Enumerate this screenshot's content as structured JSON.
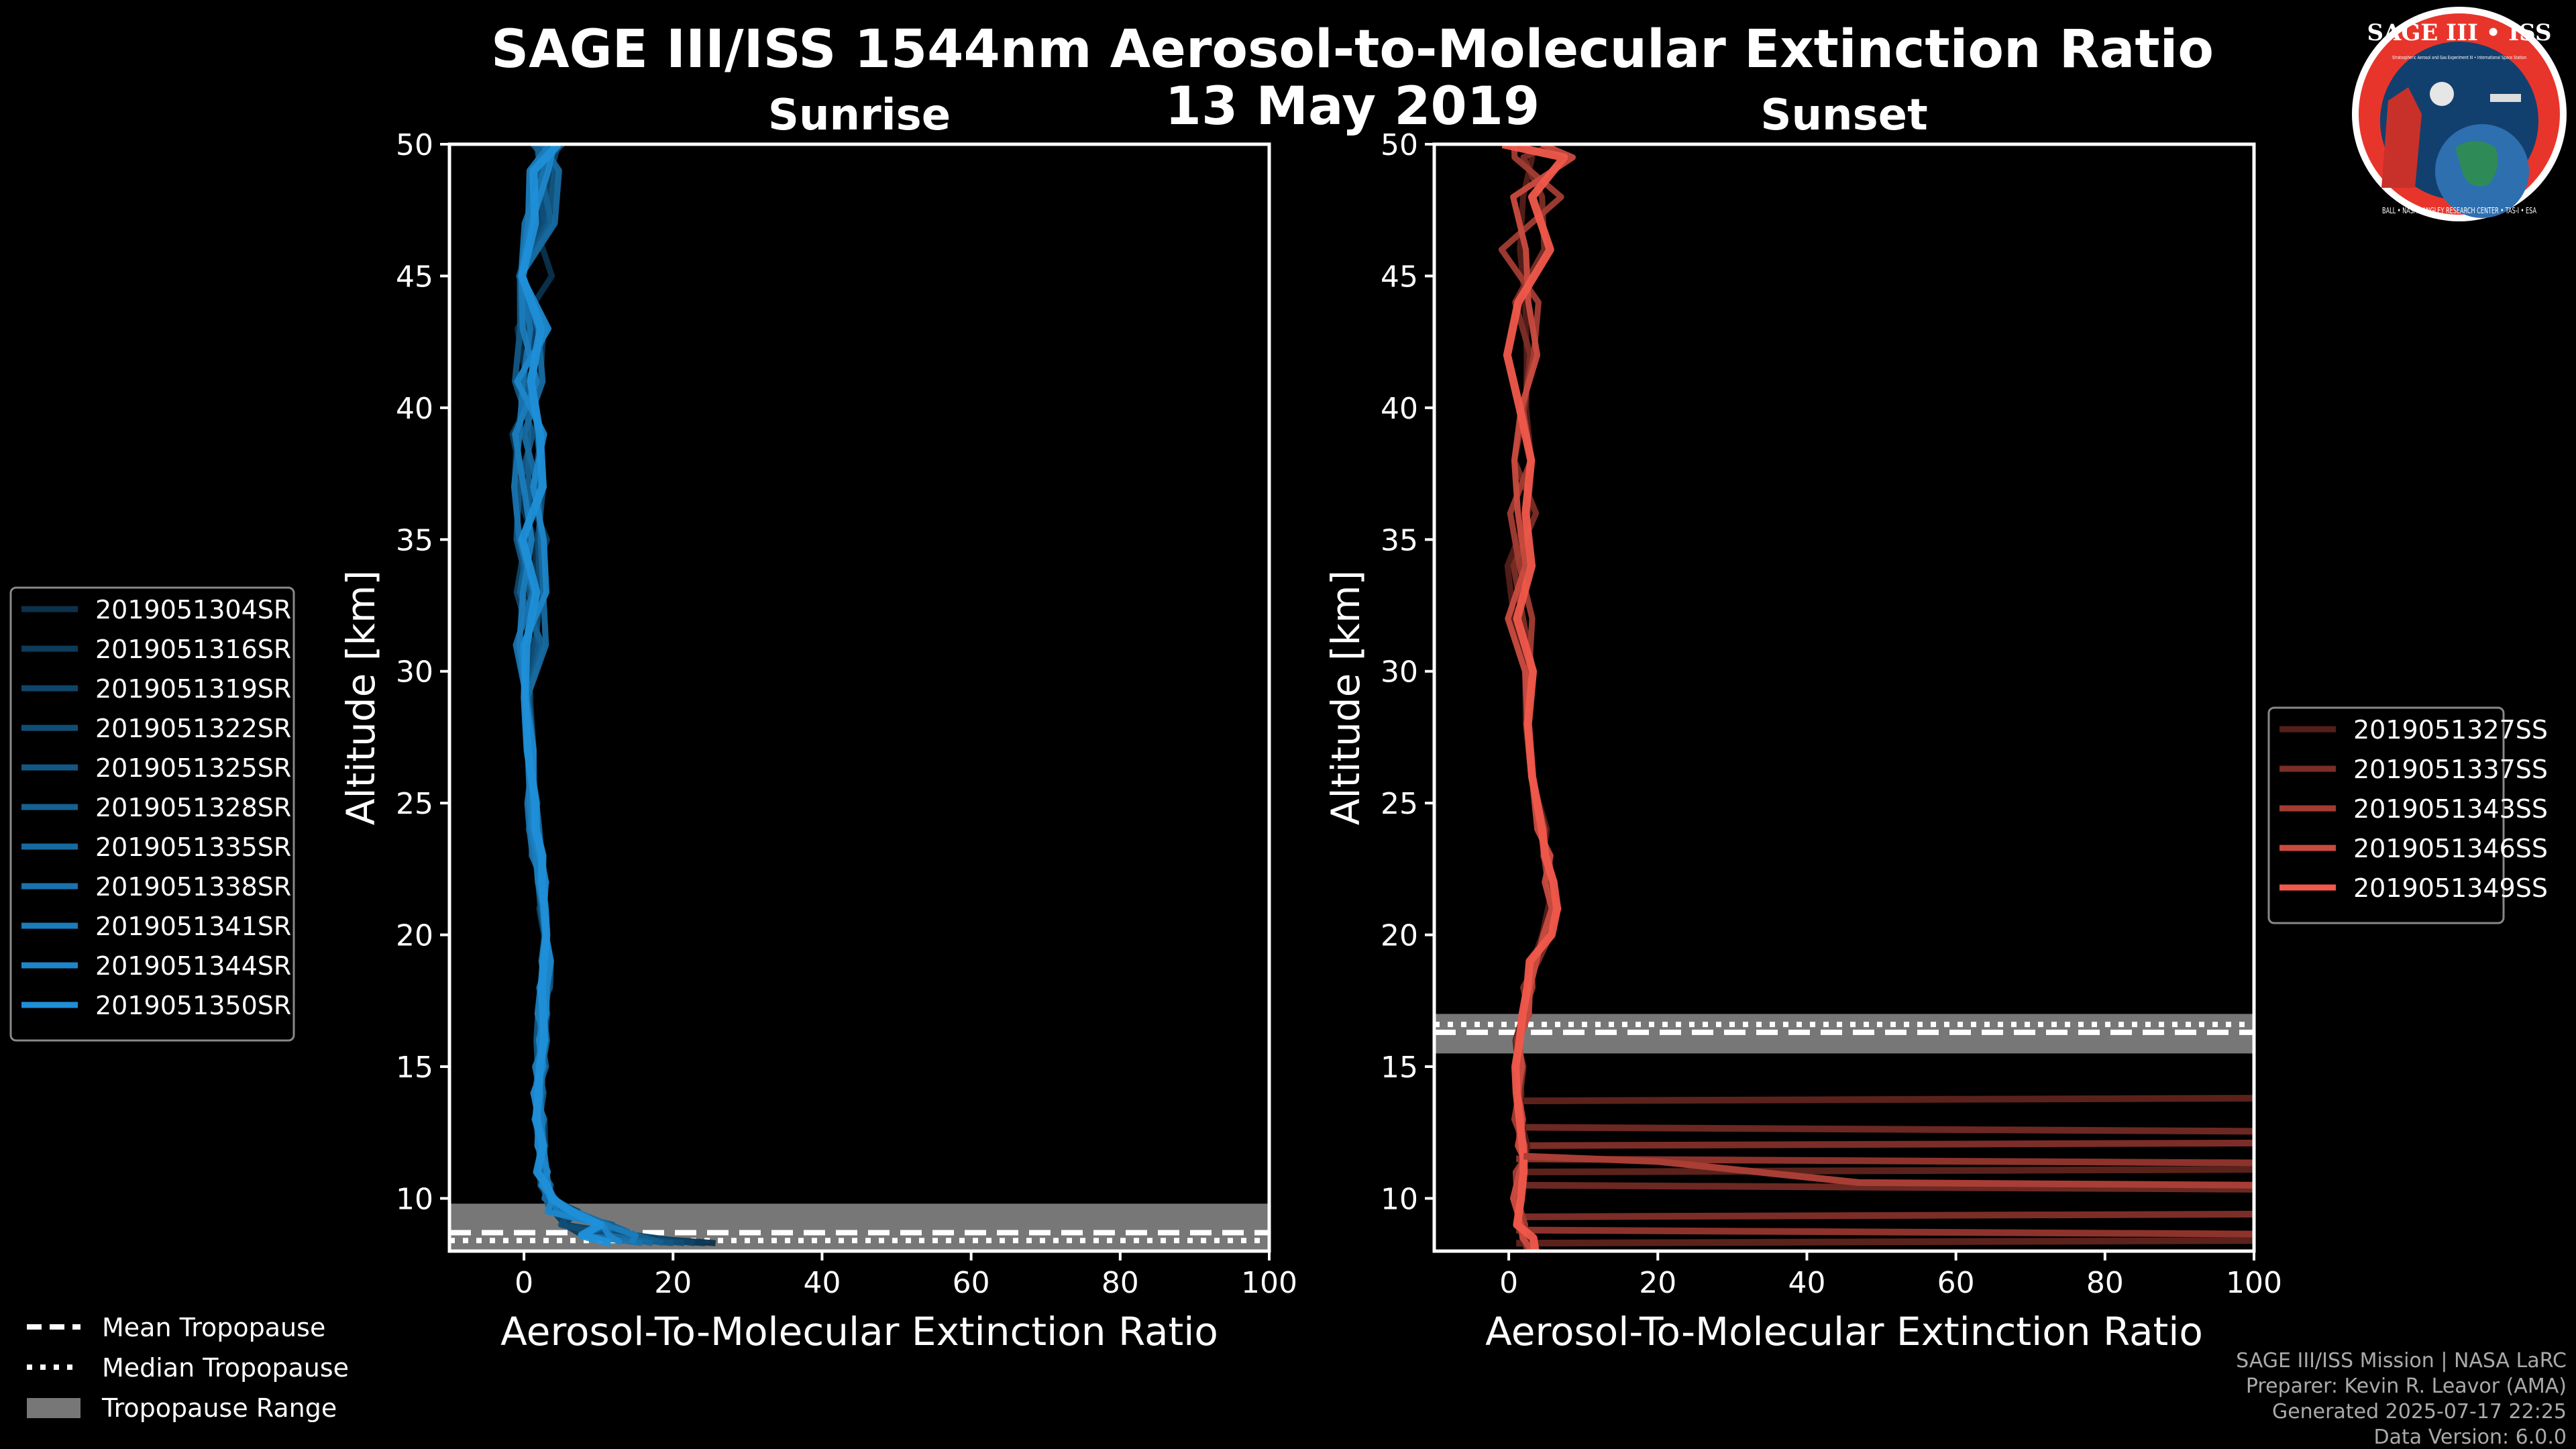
{
  "title_line1": "SAGE III/ISS 1544nm Aerosol-to-Molecular Extinction Ratio",
  "title_line2": "13 May 2019",
  "logo": {
    "text": "SAGE III • ISS",
    "ring_text": "BALL • NASA LANGLEY RESEARCH CENTER • TAS-I • ESA",
    "inner_text": "Stratospheric Aerosol and Gas Experiment III • International Space Station",
    "colors": {
      "ring": "#e8352b",
      "inner": "#12406e",
      "rim": "#ffffff"
    }
  },
  "chart_data": [
    {
      "type": "line",
      "title": "Sunrise",
      "xlabel": "Aerosol-To-Molecular Extinction Ratio",
      "ylabel": "Altitude [km]",
      "xlim": [
        -10,
        100
      ],
      "ylim": [
        8,
        50
      ],
      "xticks": [
        "0",
        "20",
        "40",
        "60",
        "80",
        "100"
      ],
      "yticks": [
        "10",
        "15",
        "20",
        "25",
        "30",
        "35",
        "40",
        "45",
        "50"
      ],
      "base_color": "#1f8fd8",
      "series": [
        {
          "name": "2019051304SR"
        },
        {
          "name": "2019051316SR"
        },
        {
          "name": "2019051319SR"
        },
        {
          "name": "2019051322SR"
        },
        {
          "name": "2019051325SR"
        },
        {
          "name": "2019051328SR"
        },
        {
          "name": "2019051335SR"
        },
        {
          "name": "2019051338SR"
        },
        {
          "name": "2019051341SR"
        },
        {
          "name": "2019051344SR"
        },
        {
          "name": "2019051350SR"
        }
      ],
      "profile_mean": {
        "altitude": [
          8.3,
          8.6,
          9.0,
          9.5,
          10.0,
          10.5,
          11.0,
          12.0,
          13.0,
          14.0,
          15.0,
          16.0,
          17.0,
          18.0,
          19.0,
          20.0,
          21.0,
          22.0,
          23.0,
          24.0,
          25.0,
          27.0,
          29.0,
          31.0,
          33.0,
          35.0,
          37.0,
          39.0,
          41.0,
          43.0,
          45.0,
          47.0,
          49.0,
          50.0
        ],
        "ratio": [
          18,
          12,
          8,
          5,
          3.5,
          2.8,
          2.5,
          2.2,
          2.0,
          2.0,
          2.2,
          2.4,
          2.6,
          2.8,
          3.0,
          3.0,
          2.8,
          2.4,
          1.8,
          1.4,
          1.2,
          1.0,
          0.8,
          0.8,
          0.8,
          1.0,
          0.6,
          0.5,
          0.8,
          1.2,
          1.5,
          2.0,
          2.5,
          3.0
        ]
      },
      "tropopause": {
        "mean": 8.7,
        "median": 8.4,
        "range": [
          8.0,
          9.8
        ]
      }
    },
    {
      "type": "line",
      "title": "Sunset",
      "xlabel": "Aerosol-To-Molecular Extinction Ratio",
      "ylabel": "Altitude [km]",
      "xlim": [
        -10,
        100
      ],
      "ylim": [
        8,
        50
      ],
      "xticks": [
        "0",
        "20",
        "40",
        "60",
        "80",
        "100"
      ],
      "yticks": [
        "10",
        "15",
        "20",
        "25",
        "30",
        "35",
        "40",
        "45",
        "50"
      ],
      "base_color": "#f0594b",
      "series": [
        {
          "name": "2019051327SS"
        },
        {
          "name": "2019051337SS"
        },
        {
          "name": "2019051343SS"
        },
        {
          "name": "2019051346SS"
        },
        {
          "name": "2019051349SS"
        }
      ],
      "profile_mean": {
        "altitude": [
          8.0,
          8.5,
          9.0,
          10.0,
          11.0,
          11.5,
          12.0,
          13.0,
          14.0,
          15.0,
          16.0,
          17.0,
          18.0,
          19.0,
          20.0,
          21.0,
          22.0,
          23.0,
          24.0,
          26.0,
          28.0,
          30.0,
          32.0,
          34.0,
          36.0,
          38.0,
          40.0,
          42.0,
          44.0,
          46.0,
          48.0,
          49.5,
          50.0
        ],
        "ratio": [
          3.0,
          2.5,
          1.8,
          1.2,
          1.5,
          2.2,
          2.0,
          1.5,
          1.3,
          1.4,
          1.6,
          2.0,
          2.5,
          3.5,
          5.0,
          6.0,
          5.5,
          5.0,
          4.5,
          3.8,
          3.0,
          2.5,
          2.0,
          1.8,
          1.5,
          1.3,
          1.5,
          2.0,
          2.5,
          3.0,
          4.0,
          5.0,
          3.0
        ]
      },
      "tropopause": {
        "mean": 16.3,
        "median": 16.6,
        "range": [
          15.5,
          17.0
        ]
      },
      "horizontal_spikes": [
        {
          "altitude": 13.7,
          "to": 100
        },
        {
          "altitude": 12.7,
          "to": 100
        },
        {
          "altitude": 12.0,
          "to": 100
        },
        {
          "altitude": 11.5,
          "to": 100
        },
        {
          "altitude": 11.0,
          "to": 100
        },
        {
          "altitude": 10.5,
          "to": 100
        },
        {
          "altitude": 9.3,
          "to": 100
        },
        {
          "altitude": 8.8,
          "to": 100
        },
        {
          "altitude": 8.3,
          "to": 100
        }
      ]
    }
  ],
  "legend_tropopause": {
    "mean": "Mean Tropopause",
    "median": "Median Tropopause",
    "range": "Tropopause Range"
  },
  "credits": [
    "SAGE III/ISS Mission | NASA LaRC",
    "Preparer: Kevin R. Leavor (AMA)",
    "Generated 2025-07-17 22:25",
    "Data Version: 6.0.0"
  ]
}
